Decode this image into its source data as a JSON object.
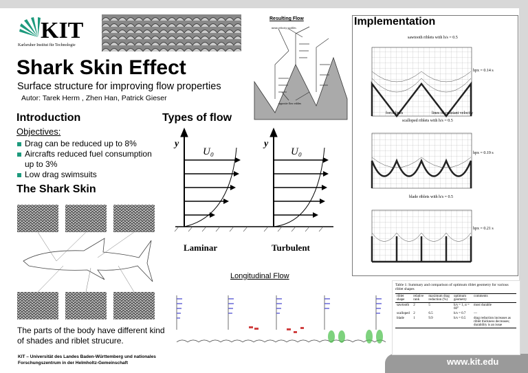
{
  "header": {
    "logo": "KIT",
    "logo_subtitle": "Karlsruher Institut für Technologie",
    "title": "Shark Skin Effect",
    "subtitle": "Surface structure for improving flow properties",
    "authors": "Autor: Tarek Herm , Zhen Han, Patrick Gieser"
  },
  "introduction": {
    "heading": "Introduction",
    "objectives": "Objectives:",
    "bullets": [
      "Drag can be reduced up to 8%",
      "Aircrafts reduced fuel consumption up to 3%",
      "Low drag swimsuits"
    ]
  },
  "shark_skin": {
    "heading": "The Shark Skin",
    "caption": "The parts of the body have different kind of shades and riblet strucure."
  },
  "types_of_flow": {
    "heading": "Types of flow",
    "axis_label": "y",
    "velocity_label": "U₀",
    "laminar": "Laminar",
    "turbulent": "Turbulent"
  },
  "resulting_flow": {
    "heading": "Resulting Flow",
    "labels": [
      "mean velocity profiles",
      "opposite flow eddies"
    ]
  },
  "longitudinal_flow": {
    "heading": "Longitudinal Flow"
  },
  "implementation": {
    "heading": "Implementation",
    "figures": [
      {
        "caption": "sawtooth riblets with h/s = 0.5",
        "height_label": "hpx = 0.14 s"
      },
      {
        "caption": "scalloped riblets with h/s = 0.5",
        "height_label": "hpx = 0.19 s"
      },
      {
        "caption": "blade riblets with h/s = 0.5",
        "height_label": "hpx = 0.21 s"
      }
    ],
    "force_lines": "force lines",
    "constant_velocity": "lines of constant velocity"
  },
  "table": {
    "caption": "Table 1: Summary and comparison of optimum riblet geometry for various riblet shapes",
    "columns": [
      "riblet shape",
      "relative rank",
      "maximum drag reduction (%)",
      "optimum geometry",
      "comments"
    ],
    "rows": [
      [
        "sawtooth",
        "2",
        "5",
        "h/s = 1, α = 60°",
        "most durable"
      ],
      [
        "scalloped",
        "2",
        "6.5",
        "h/s = 0.7",
        "—"
      ],
      [
        "blade",
        "1",
        "9.9",
        "h/s = 0.5",
        "drag reduction increases as riblet thickness decreases; durability is an issue"
      ]
    ]
  },
  "footer": {
    "institution": "KIT – Universität des Landes Baden-Württemberg und nationales Forschungszentrum in der Helmholtz-Gemeinschaft",
    "url": "www.kit.edu"
  }
}
